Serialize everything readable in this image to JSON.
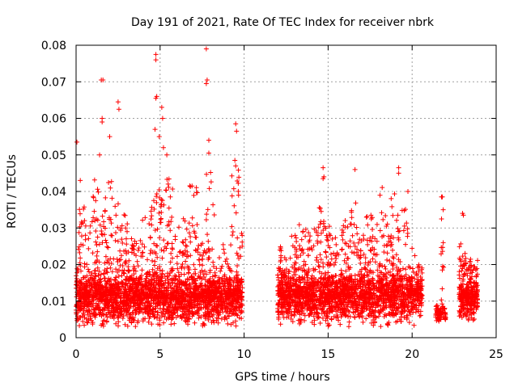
{
  "chart_data": {
    "type": "scatter",
    "title": "Day 191 of 2021, Rate Of TEC Index for receiver nbrk",
    "xlabel": "GPS time / hours",
    "ylabel": "ROTI / TECUs",
    "xlim": [
      0,
      25
    ],
    "ylim": [
      0,
      0.08
    ],
    "xticks": [
      0,
      5,
      10,
      15,
      20,
      25
    ],
    "yticks": [
      0,
      0.01,
      0.02,
      0.03,
      0.04,
      0.05,
      0.06,
      0.07,
      0.08
    ],
    "ytick_labels": [
      "0",
      "0.01",
      "0.02",
      "0.03",
      "0.04",
      "0.05",
      "0.06",
      "0.07",
      "0.08"
    ],
    "grid": true,
    "marker": "+",
    "series_color": "#ff0000",
    "series": [
      {
        "name": "ROTI",
        "clusters": [
          {
            "x_start": 0.0,
            "x_end": 9.9,
            "y_base": 0.0108,
            "y_spread": 0.0045,
            "y_min": 0.003,
            "count": 2600
          },
          {
            "x_start": 12.0,
            "x_end": 20.6,
            "y_base": 0.0112,
            "y_spread": 0.0045,
            "y_min": 0.003,
            "count": 2200
          },
          {
            "x_start": 21.4,
            "x_end": 22.0,
            "y_base": 0.0065,
            "y_spread": 0.0015,
            "y_min": 0.004,
            "count": 80
          },
          {
            "x_start": 22.8,
            "x_end": 23.9,
            "y_base": 0.0105,
            "y_spread": 0.0035,
            "y_min": 0.004,
            "count": 320
          }
        ],
        "envelope": [
          {
            "x": 0.0,
            "y": 0.025
          },
          {
            "x": 0.3,
            "y": 0.036
          },
          {
            "x": 0.8,
            "y": 0.032
          },
          {
            "x": 1.2,
            "y": 0.044
          },
          {
            "x": 1.6,
            "y": 0.04
          },
          {
            "x": 2.0,
            "y": 0.045
          },
          {
            "x": 2.5,
            "y": 0.037
          },
          {
            "x": 3.0,
            "y": 0.034
          },
          {
            "x": 3.5,
            "y": 0.028
          },
          {
            "x": 4.0,
            "y": 0.033
          },
          {
            "x": 4.5,
            "y": 0.04
          },
          {
            "x": 5.0,
            "y": 0.042
          },
          {
            "x": 5.5,
            "y": 0.044
          },
          {
            "x": 6.0,
            "y": 0.031
          },
          {
            "x": 6.5,
            "y": 0.033
          },
          {
            "x": 7.0,
            "y": 0.042
          },
          {
            "x": 7.5,
            "y": 0.028
          },
          {
            "x": 8.0,
            "y": 0.046
          },
          {
            "x": 8.5,
            "y": 0.022
          },
          {
            "x": 9.0,
            "y": 0.026
          },
          {
            "x": 9.5,
            "y": 0.046
          },
          {
            "x": 9.9,
            "y": 0.03
          },
          {
            "x": 12.0,
            "y": 0.025
          },
          {
            "x": 12.5,
            "y": 0.022
          },
          {
            "x": 13.0,
            "y": 0.028
          },
          {
            "x": 13.5,
            "y": 0.033
          },
          {
            "x": 14.0,
            "y": 0.03
          },
          {
            "x": 14.5,
            "y": 0.036
          },
          {
            "x": 15.0,
            "y": 0.031
          },
          {
            "x": 15.5,
            "y": 0.028
          },
          {
            "x": 16.0,
            "y": 0.034
          },
          {
            "x": 16.5,
            "y": 0.04
          },
          {
            "x": 17.0,
            "y": 0.03
          },
          {
            "x": 17.5,
            "y": 0.034
          },
          {
            "x": 18.0,
            "y": 0.042
          },
          {
            "x": 18.5,
            "y": 0.034
          },
          {
            "x": 19.0,
            "y": 0.04
          },
          {
            "x": 19.5,
            "y": 0.036
          },
          {
            "x": 20.0,
            "y": 0.025
          },
          {
            "x": 20.5,
            "y": 0.02
          },
          {
            "x": 21.5,
            "y": 0.009
          },
          {
            "x": 21.8,
            "y": 0.025
          },
          {
            "x": 22.9,
            "y": 0.026
          },
          {
            "x": 23.4,
            "y": 0.022
          },
          {
            "x": 23.9,
            "y": 0.022
          }
        ],
        "peaks": [
          {
            "x": 0.05,
            "y": 0.0535
          },
          {
            "x": 0.25,
            "y": 0.043
          },
          {
            "x": 1.5,
            "y": 0.0705
          },
          {
            "x": 1.6,
            "y": 0.0705
          },
          {
            "x": 1.55,
            "y": 0.06
          },
          {
            "x": 1.55,
            "y": 0.059
          },
          {
            "x": 1.4,
            "y": 0.05
          },
          {
            "x": 2.0,
            "y": 0.055
          },
          {
            "x": 2.5,
            "y": 0.0645
          },
          {
            "x": 2.55,
            "y": 0.0625
          },
          {
            "x": 4.75,
            "y": 0.0775
          },
          {
            "x": 4.75,
            "y": 0.076
          },
          {
            "x": 4.8,
            "y": 0.066
          },
          {
            "x": 4.75,
            "y": 0.0655
          },
          {
            "x": 5.1,
            "y": 0.063
          },
          {
            "x": 5.15,
            "y": 0.06
          },
          {
            "x": 4.7,
            "y": 0.057
          },
          {
            "x": 4.95,
            "y": 0.055
          },
          {
            "x": 5.2,
            "y": 0.052
          },
          {
            "x": 5.4,
            "y": 0.05
          },
          {
            "x": 7.75,
            "y": 0.079
          },
          {
            "x": 7.8,
            "y": 0.0705
          },
          {
            "x": 7.75,
            "y": 0.0695
          },
          {
            "x": 7.9,
            "y": 0.054
          },
          {
            "x": 7.9,
            "y": 0.0505
          },
          {
            "x": 9.5,
            "y": 0.0585
          },
          {
            "x": 9.55,
            "y": 0.0565
          },
          {
            "x": 9.45,
            "y": 0.0485
          },
          {
            "x": 9.5,
            "y": 0.047
          },
          {
            "x": 14.7,
            "y": 0.0465
          },
          {
            "x": 14.75,
            "y": 0.044
          },
          {
            "x": 14.7,
            "y": 0.0435
          },
          {
            "x": 16.6,
            "y": 0.046
          },
          {
            "x": 19.2,
            "y": 0.0465
          },
          {
            "x": 19.2,
            "y": 0.045
          },
          {
            "x": 19.75,
            "y": 0.04
          },
          {
            "x": 21.75,
            "y": 0.0385
          },
          {
            "x": 21.8,
            "y": 0.0385
          },
          {
            "x": 21.85,
            "y": 0.035
          },
          {
            "x": 21.75,
            "y": 0.0325
          },
          {
            "x": 21.85,
            "y": 0.026
          },
          {
            "x": 23.0,
            "y": 0.034
          },
          {
            "x": 23.05,
            "y": 0.0335
          }
        ]
      }
    ]
  }
}
